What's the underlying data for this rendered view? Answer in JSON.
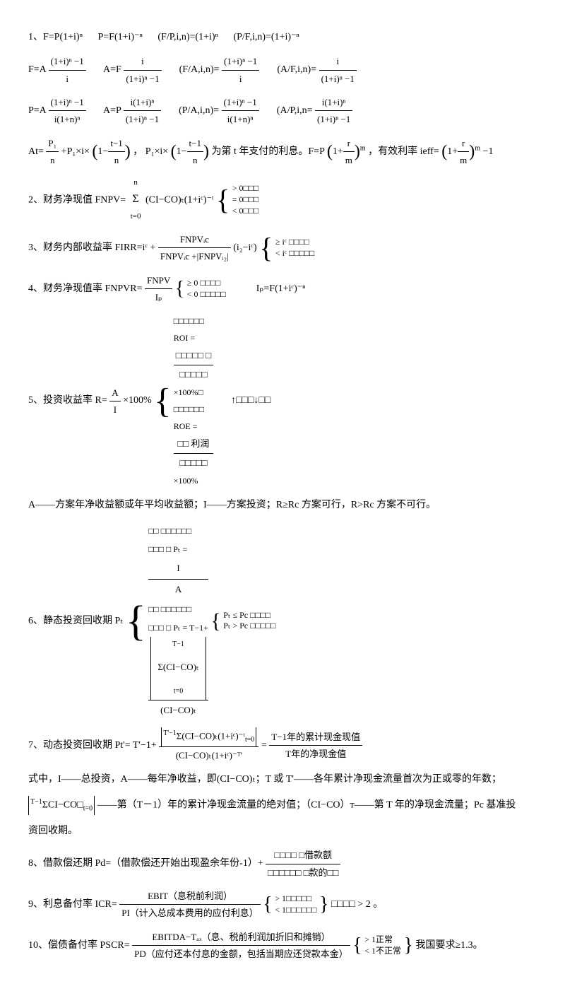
{
  "page": {
    "background": "#ffffff",
    "text_color": "#000000",
    "font_family": "Times New Roman, SimSun, serif",
    "base_fontsize": 14
  },
  "formulas": {
    "1": {
      "line1_a": "1、F=P(1+i)ⁿ",
      "line1_b": "P=F(1+i)⁻ⁿ",
      "line1_c": "(F/P,i,n)=(1+i)ⁿ",
      "line1_d": "(P/F,i,n)=(1+i)⁻ⁿ",
      "fa_lhs": "F=A",
      "fa_num": "(1+i)ⁿ −1",
      "fa_den": "i",
      "af_lhs": "A=F",
      "af_num": "i",
      "af_den": "(1+i)ⁿ −1",
      "fain_lhs": "(F/A,i,n)=",
      "fain_num": "(1+i)ⁿ −1",
      "fain_den": "i",
      "afin_lhs": "(A/F,i,n)=",
      "afin_num": "i",
      "afin_den": "(1+i)ⁿ −1",
      "pa_lhs": "P=A",
      "pa_num": "(1+i)ⁿ −1",
      "pa_den": "i(1+n)ⁿ",
      "ap_lhs": "A=P",
      "ap_num": "i(1+i)ⁿ",
      "ap_den": "(1+i)ⁿ −1",
      "pain_lhs": "(P/A,i,n)=",
      "pain_num": "(1+i)ⁿ −1",
      "pain_den": "i(1+n)ⁿ",
      "apin_lhs": "(A/P,i,n=",
      "apin_num": "i(1+i)ⁿ",
      "apin_den": "(1+i)ⁿ −1",
      "at_lhs": "At=",
      "at_term1_num": "P₁",
      "at_term1_den": "n",
      "at_plus": "+P₁×i×",
      "at_inner_num": "t−1",
      "at_inner_den": "n",
      "at_comma": "，",
      "at_note1": "P₁×i×",
      "at_note2": "为第 t 年支付的利息。F=P",
      "at_rm_num": "r",
      "at_rm_den": "m",
      "at_exp": "m",
      "at_eff": "，有效利率 ieff=",
      "at_eff_tail": "−1"
    },
    "2": {
      "label": "2、财务净现值 FNPV=",
      "sum_lower": "t=0",
      "sum_upper": "n",
      "sum_body": "(CI−CO)ₜ(1+iᶜ)⁻ᵗ",
      "case1": "> 0□□□",
      "case2": "= 0□□□",
      "case3": "< 0□□□"
    },
    "3": {
      "label": "3、财务内部收益率 FIRR=iᶜ +",
      "num": "FNPVᵢc",
      "den": "FNPVᵢc +|FNPVᵢ₂|",
      "tail": "(i₂−iᶜ)",
      "case1": "≥ iᶜ □□□□",
      "case2": "< iᶜ □□□□□"
    },
    "4": {
      "label": "4、财务净现值率 FNPVR=",
      "num": "FNPV",
      "den": "Iₚ",
      "case1": "≥ 0 □□□□",
      "case2": "< 0 □□□□□",
      "ip": "Iₚ=F(1+iᶜ)⁻ⁿ"
    },
    "5": {
      "label": "5、投资收益率 R=",
      "r_num": "A",
      "r_den": "I",
      "r_tail": "×100%",
      "roi_lhs": "□□□□□□",
      "roi_eq": "ROI =",
      "roi_num": "□□□□□    □",
      "roi_den": "□□□□□",
      "roi_tail": "×100%□",
      "roe_lhs": "□□□□□□",
      "roe_eq": "ROE =",
      "roe_num": "□□ 利润",
      "roe_den": "□□□□□",
      "roe_tail": "×100%",
      "arrow": "↑□□□↓□□",
      "note": "A——方案年净收益额或年平均收益额；I——方案投资；R≥Rc 方案可行，R>Rc 方案不可行。"
    },
    "6": {
      "label": "6、静态投资回收期 Pₜ",
      "row1_left": "□□  □□□□□□",
      "row1_mid": "□□□  □ Pₜ =",
      "row1_num": "I",
      "row1_den": "A",
      "row2_left": "□□  □□□□□□",
      "row2_mid": "□□□  □ Pₜ = T−1+",
      "row2_abs_top": "Σ(CI−CO)ₜ",
      "row2_abs_sup": "T−1",
      "row2_abs_sub": "t=0",
      "row2_den": "(CI−CO)ₜ",
      "case1": "Pₜ ≤ Pc □□□□",
      "case2": "Pₜ > Pc □□□□□"
    },
    "7": {
      "label": "7、动态投资回收期 Pt'=",
      "lhs": "T'−1+",
      "num_sum_sup": "T'−1",
      "num_sum_sub": "t=0",
      "num_body": "Σ(CI−CO)ₜ(1+iᶜ)⁻ᵗ",
      "den": "(CI−CO)ₜ(1+iᶜ)⁻ᵀ'",
      "eq": "=",
      "rhs_num": "T−1年的累计现金现值",
      "rhs_den": "T年的净现金值",
      "note1": "式中，I——总投资，A——每年净收益，即(CI−CO)ₜ；T 或 T'——各年累计净现金流量首次为正或零的年数；",
      "note2_lhs": "ΣCI−CO□",
      "note2_sup": "T−1",
      "note2_sub": "t=0",
      "note2_tail": "——第（T－1）年的累计净现金流量的绝对值；（CI−CO）ᴛ——第 T 年的净现金流量；Pc 基准投",
      "note3": "资回收期。"
    },
    "8": {
      "label": "8、借款偿还期 Pd=（借款偿还开始出现盈余年份-1）+",
      "num": "□□□□   □借款额",
      "den": "□□□□□□    □款的□□"
    },
    "9": {
      "label": "9、利息备付率 ICR=",
      "num": "EBIT（息税前利润）",
      "den": "PI（计入总成本费用的应付利息）",
      "case1": "> 1□□□□□",
      "case2": "< 1□□□□□□",
      "tail": "□□□□  > 2 。"
    },
    "10": {
      "label": "10、偿债备付率 PSCR=",
      "num": "EBITDA−Tₐₓ（息、税前利润加折旧和摊销）",
      "den": "PD（应付还本付息的金额，包括当期应还贷款本金）",
      "case1": "> 1正常",
      "case2": "< 1不正常",
      "tail": "我国要求≥1.3。"
    }
  }
}
